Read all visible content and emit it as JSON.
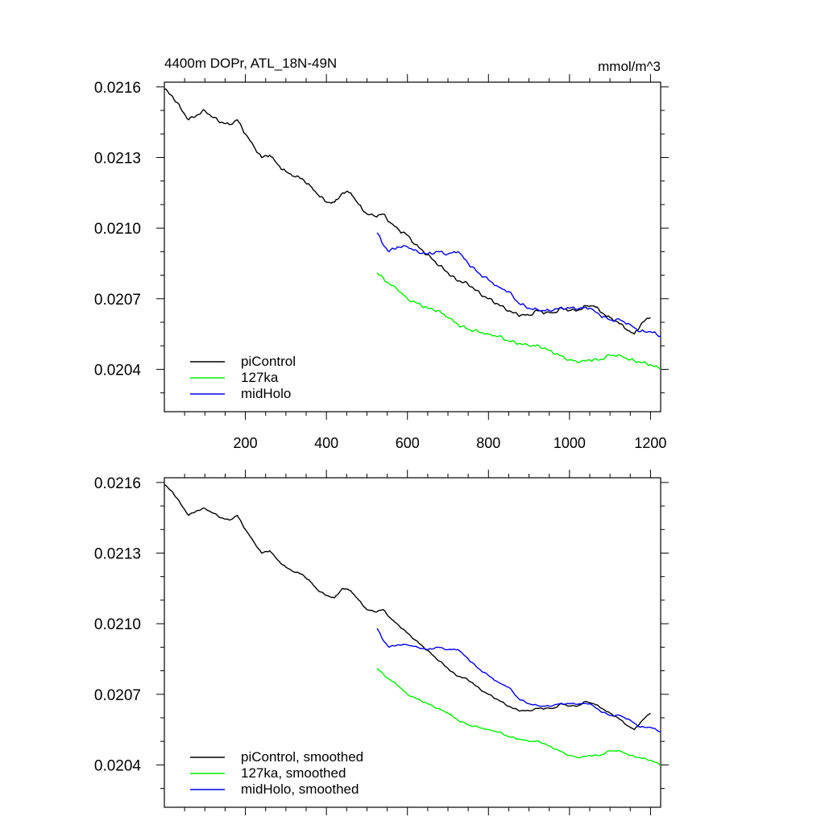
{
  "chart_data": [
    {
      "type": "line",
      "title_left": "4400m DOPr, ATL_18N-49N",
      "title_right": "mmol/m^3",
      "xlabel": "",
      "ylabel": "",
      "xlim": [
        0,
        1225
      ],
      "ylim": [
        0.02022,
        0.02162
      ],
      "x_ticks": [
        200,
        400,
        600,
        800,
        1000,
        1200
      ],
      "x_tick_labels": [
        "200",
        "400",
        "600",
        "800",
        "1000",
        "1200"
      ],
      "show_x_tick_labels": true,
      "y_ticks": [
        0.0204,
        0.0207,
        0.021,
        0.0213,
        0.0216
      ],
      "y_tick_labels": [
        "0.0204",
        "0.0207",
        "0.0210",
        "0.0213",
        "0.0216"
      ],
      "legend_position": "bottom-left",
      "series": [
        {
          "name": "piControl",
          "color": "#000000",
          "x": [
            0,
            20,
            40,
            60,
            80,
            100,
            120,
            140,
            160,
            180,
            200,
            220,
            240,
            260,
            280,
            300,
            320,
            340,
            360,
            380,
            400,
            420,
            440,
            460,
            480,
            500,
            520,
            540,
            560,
            580,
            600,
            620,
            640,
            660,
            680,
            700,
            720,
            740,
            760,
            780,
            800,
            820,
            840,
            860,
            880,
            900,
            920,
            940,
            960,
            980,
            1000,
            1020,
            1040,
            1060,
            1080,
            1100,
            1120,
            1140,
            1160,
            1180,
            1200
          ],
          "y": [
            0.02159,
            0.02156,
            0.02151,
            0.02146,
            0.02148,
            0.0215,
            0.02147,
            0.02145,
            0.02144,
            0.02146,
            0.0214,
            0.02135,
            0.0213,
            0.02131,
            0.02127,
            0.02124,
            0.02122,
            0.02121,
            0.02118,
            0.02114,
            0.02111,
            0.02111,
            0.02115,
            0.02115,
            0.0211,
            0.02106,
            0.02105,
            0.02106,
            0.02102,
            0.02099,
            0.02097,
            0.02093,
            0.0209,
            0.02087,
            0.02084,
            0.02081,
            0.02078,
            0.02077,
            0.02075,
            0.02072,
            0.0207,
            0.02068,
            0.02066,
            0.02064,
            0.02063,
            0.02063,
            0.02065,
            0.02064,
            0.02064,
            0.02066,
            0.02065,
            0.02065,
            0.02067,
            0.02067,
            0.02064,
            0.02062,
            0.0206,
            0.02057,
            0.02055,
            0.0206,
            0.02062
          ]
        },
        {
          "name": "127ka",
          "color": "#00ee00",
          "x": [
            525,
            550,
            575,
            600,
            625,
            650,
            675,
            700,
            725,
            750,
            775,
            800,
            825,
            850,
            875,
            900,
            925,
            950,
            975,
            1000,
            1025,
            1050,
            1075,
            1100,
            1125,
            1150,
            1175,
            1200,
            1225
          ],
          "y": [
            0.02081,
            0.02077,
            0.02074,
            0.0207,
            0.02068,
            0.02066,
            0.02065,
            0.02062,
            0.02059,
            0.02057,
            0.02056,
            0.02055,
            0.02054,
            0.02052,
            0.02051,
            0.0205,
            0.0205,
            0.02048,
            0.02046,
            0.02044,
            0.02043,
            0.02044,
            0.02044,
            0.02046,
            0.02046,
            0.02044,
            0.02043,
            0.02042,
            0.0204
          ]
        },
        {
          "name": "midHolo",
          "color": "#0000ee",
          "x": [
            525,
            540,
            555,
            575,
            600,
            625,
            650,
            675,
            700,
            725,
            750,
            775,
            800,
            825,
            850,
            875,
            900,
            925,
            950,
            975,
            1000,
            1025,
            1050,
            1075,
            1100,
            1125,
            1150,
            1175,
            1200,
            1225
          ],
          "y": [
            0.02098,
            0.02093,
            0.0209,
            0.02092,
            0.02092,
            0.0209,
            0.02089,
            0.0209,
            0.02089,
            0.0209,
            0.02085,
            0.02081,
            0.02078,
            0.02075,
            0.02073,
            0.02068,
            0.02066,
            0.02065,
            0.02065,
            0.02066,
            0.02066,
            0.02066,
            0.02066,
            0.02063,
            0.02061,
            0.02061,
            0.02059,
            0.02056,
            0.02056,
            0.02054
          ]
        }
      ]
    },
    {
      "type": "line",
      "title_left": "",
      "title_right": "",
      "xlabel": "",
      "ylabel": "",
      "xlim": [
        0,
        1225
      ],
      "ylim": [
        0.02022,
        0.02162
      ],
      "x_ticks": [
        200,
        400,
        600,
        800,
        1000,
        1200
      ],
      "x_tick_labels": [],
      "show_x_tick_labels": false,
      "y_ticks": [
        0.0204,
        0.0207,
        0.021,
        0.0213,
        0.0216
      ],
      "y_tick_labels": [
        "0.0204",
        "0.0207",
        "0.0210",
        "0.0213",
        "0.0216"
      ],
      "legend_position": "bottom-left",
      "series": [
        {
          "name": "piControl, smoothed",
          "color": "#000000",
          "x": [
            0,
            20,
            40,
            60,
            80,
            100,
            120,
            140,
            160,
            180,
            200,
            220,
            240,
            260,
            280,
            300,
            320,
            340,
            360,
            380,
            400,
            420,
            440,
            460,
            480,
            500,
            520,
            540,
            560,
            580,
            600,
            620,
            640,
            660,
            680,
            700,
            720,
            740,
            760,
            780,
            800,
            820,
            840,
            860,
            880,
            900,
            920,
            940,
            960,
            980,
            1000,
            1020,
            1040,
            1060,
            1080,
            1100,
            1120,
            1140,
            1160,
            1180,
            1200
          ],
          "y": [
            0.02159,
            0.02156,
            0.02151,
            0.02146,
            0.02148,
            0.02149,
            0.02147,
            0.02145,
            0.02144,
            0.02146,
            0.0214,
            0.02135,
            0.0213,
            0.02131,
            0.02127,
            0.02124,
            0.02122,
            0.02121,
            0.02118,
            0.02114,
            0.02112,
            0.02111,
            0.02115,
            0.02114,
            0.0211,
            0.02106,
            0.02105,
            0.02106,
            0.02102,
            0.02099,
            0.02096,
            0.02093,
            0.0209,
            0.02087,
            0.02084,
            0.02081,
            0.02078,
            0.02077,
            0.02075,
            0.02072,
            0.0207,
            0.02068,
            0.02066,
            0.02064,
            0.02063,
            0.02063,
            0.02064,
            0.02064,
            0.02064,
            0.02066,
            0.02065,
            0.02065,
            0.02067,
            0.02066,
            0.02064,
            0.02062,
            0.0206,
            0.02057,
            0.02055,
            0.02059,
            0.02062
          ]
        },
        {
          "name": "127ka, smoothed",
          "color": "#00ee00",
          "x": [
            525,
            550,
            575,
            600,
            625,
            650,
            675,
            700,
            725,
            750,
            775,
            800,
            825,
            850,
            875,
            900,
            925,
            950,
            975,
            1000,
            1025,
            1050,
            1075,
            1100,
            1125,
            1150,
            1175,
            1200,
            1225
          ],
          "y": [
            0.02081,
            0.02077,
            0.02074,
            0.0207,
            0.02068,
            0.02066,
            0.02064,
            0.02062,
            0.02059,
            0.02057,
            0.02056,
            0.02055,
            0.02054,
            0.02052,
            0.02051,
            0.0205,
            0.0205,
            0.02048,
            0.02046,
            0.02044,
            0.02043,
            0.02044,
            0.02044,
            0.02046,
            0.02046,
            0.02044,
            0.02043,
            0.02042,
            0.0204
          ]
        },
        {
          "name": "midHolo, smoothed",
          "color": "#0000ee",
          "x": [
            525,
            540,
            555,
            575,
            600,
            625,
            650,
            675,
            700,
            725,
            750,
            775,
            800,
            825,
            850,
            875,
            900,
            925,
            950,
            975,
            1000,
            1025,
            1050,
            1075,
            1100,
            1125,
            1150,
            1175,
            1200,
            1225
          ],
          "y": [
            0.02098,
            0.02093,
            0.0209,
            0.02091,
            0.02091,
            0.0209,
            0.02089,
            0.0209,
            0.02089,
            0.02089,
            0.02085,
            0.02081,
            0.02078,
            0.02075,
            0.02073,
            0.02068,
            0.02066,
            0.02065,
            0.02065,
            0.02066,
            0.02066,
            0.02066,
            0.02066,
            0.02063,
            0.02061,
            0.02061,
            0.02059,
            0.02056,
            0.02056,
            0.02054
          ]
        }
      ]
    }
  ]
}
